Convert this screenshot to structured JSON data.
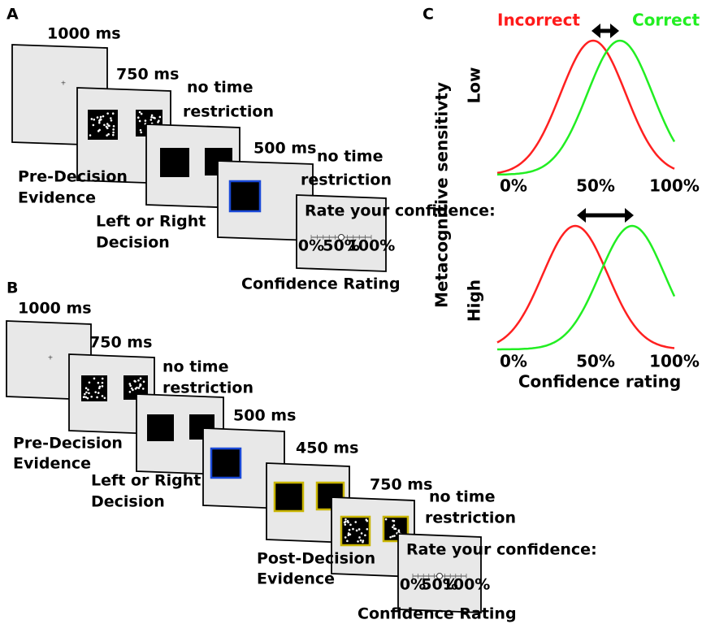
{
  "panel_a": {
    "letter": "A",
    "durations": [
      "1000 ms",
      "750 ms",
      "500 ms"
    ],
    "no_time_restriction": [
      [
        "no time",
        "restriction"
      ],
      [
        "no time",
        "restriction"
      ]
    ],
    "stages": [
      [
        "Pre-Decision",
        "Evidence"
      ],
      [
        "Left or Right",
        "Decision"
      ],
      [
        "Confidence Rating"
      ]
    ],
    "rating_screen": {
      "prompt": "Rate your confidence:",
      "ticks": [
        "0%",
        "50%",
        "100%"
      ]
    }
  },
  "panel_b": {
    "letter": "B",
    "durations": [
      "1000 ms",
      "750 ms",
      "500 ms",
      "450 ms",
      "750 ms"
    ],
    "no_time_restriction": [
      [
        "no time",
        "restriction"
      ],
      [
        "no time",
        "restriction"
      ]
    ],
    "stages": [
      [
        "Pre-Decision",
        "Evidence"
      ],
      [
        "Left or Right",
        "Decision"
      ],
      [
        "Post-Decision",
        "Evidence"
      ],
      [
        "Confidence Rating"
      ]
    ],
    "rating_screen": {
      "prompt": "Rate your confidence:",
      "ticks": [
        "0%",
        "50%",
        "100%"
      ]
    }
  },
  "panel_c": {
    "letter": "C",
    "legend": {
      "incorrect": "Incorrect",
      "correct": "Correct"
    },
    "y_label": "Metacognitive sensitivty",
    "rows": [
      {
        "label": "Low",
        "xticks": [
          "0%",
          "50%",
          "100%"
        ]
      },
      {
        "label": "High",
        "xticks": [
          "0%",
          "50%",
          "100%"
        ]
      }
    ],
    "x_label": "Confidence rating"
  }
}
